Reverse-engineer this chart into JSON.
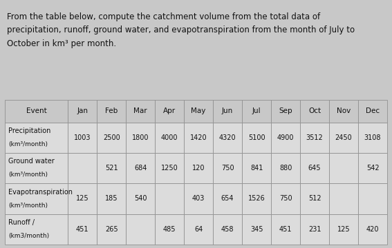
{
  "title_line1": "From the table below, compute the catchment volume from the total data of",
  "title_line2": "precipitation, runoff, ground water, and evapotranspiration from the month of July to",
  "title_line3": "October in km³ per month.",
  "columns": [
    "Event",
    "Jan",
    "Feb",
    "Mar",
    "Apr",
    "May",
    "Jun",
    "Jul",
    "Sep",
    "Oct",
    "Nov",
    "Dec"
  ],
  "rows": [
    {
      "label_line1": "Precipitation",
      "label_line2": "(km³/month)",
      "values": [
        "1003",
        "2500",
        "1800",
        "4000",
        "1420",
        "4320",
        "5100",
        "4900",
        "3512",
        "2450",
        "3108"
      ]
    },
    {
      "label_line1": "Ground water",
      "label_line2": "(km³/month)",
      "values": [
        "",
        "521",
        "684",
        "1250",
        "120",
        "750",
        "841",
        "880",
        "645",
        "",
        "542"
      ]
    },
    {
      "label_line1": "Evapotranspiration",
      "label_line2": "(km³/month)",
      "values": [
        "125",
        "185",
        "540",
        "",
        "403",
        "654",
        "1526",
        "750",
        "512",
        "",
        ""
      ]
    },
    {
      "label_line1": "Runoff /",
      "label_line2": "(km3/month)",
      "values": [
        "451",
        "265",
        "",
        "485",
        "64",
        "458",
        "345",
        "451",
        "231",
        "125",
        "420"
      ]
    }
  ],
  "bg_color": "#c8c8c8",
  "table_bg": "#dcdcdc",
  "header_bg": "#c8c8c8",
  "border_color": "#909090",
  "text_color": "#111111",
  "title_fontsize": 8.5,
  "cell_fontsize": 7.0,
  "header_fontsize": 7.5,
  "label_fontsize": 7.0,
  "label_sub_fontsize": 6.5
}
